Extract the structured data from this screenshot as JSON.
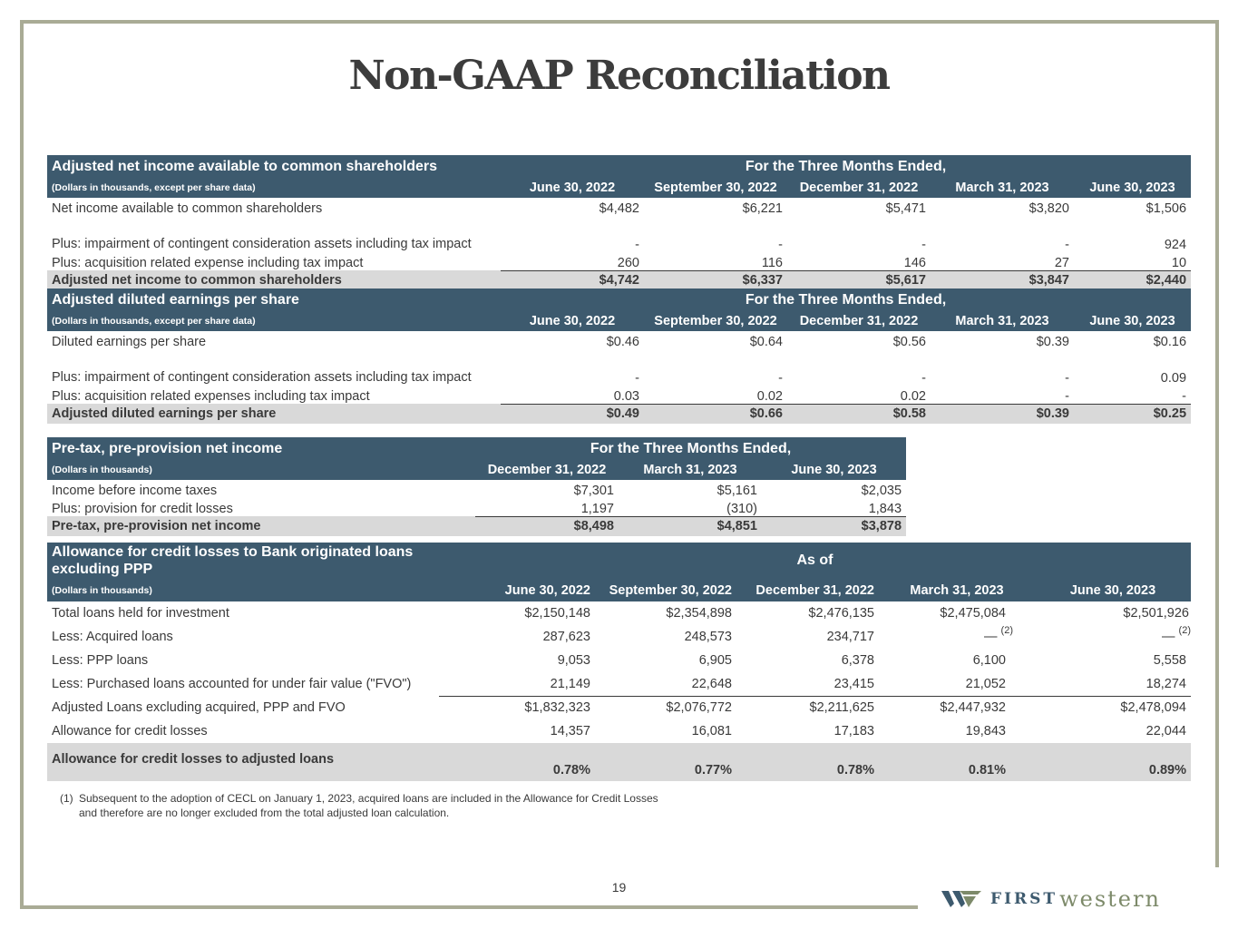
{
  "page": {
    "title": "Non-GAAP Reconciliation",
    "page_number": "19"
  },
  "table1": {
    "title": "Adjusted net income available to common shareholders",
    "period_header": "For the Three Months Ended,",
    "subtitle": "(Dollars in thousands, except per share data)",
    "columns": [
      "June 30, 2022",
      "September 30, 2022",
      "December 31, 2022",
      "March 31, 2023",
      "June 30, 2023"
    ],
    "rows": [
      {
        "label": "Net income available to common shareholders",
        "values": [
          "$4,482",
          "$6,221",
          "$5,471",
          "$3,820",
          "$1,506"
        ]
      },
      {
        "label": "Plus: impairment of contingent consideration assets including tax impact",
        "values": [
          "-",
          "-",
          "-",
          "-",
          "924"
        ]
      },
      {
        "label": "Plus: acquisition related expense including tax impact",
        "values": [
          "260",
          "116",
          "146",
          "27",
          "10"
        ]
      }
    ],
    "total": {
      "label": "Adjusted net income to common shareholders",
      "values": [
        "$4,742",
        "$6,337",
        "$5,617",
        "$3,847",
        "$2,440"
      ]
    }
  },
  "table2": {
    "title": "Adjusted diluted earnings per share",
    "period_header": "For the Three Months Ended,",
    "subtitle": "(Dollars in thousands, except per share data)",
    "columns": [
      "June 30, 2022",
      "September 30, 2022",
      "December 31, 2022",
      "March 31, 2023",
      "June 30, 2023"
    ],
    "rows": [
      {
        "label": "Diluted earnings per share",
        "values": [
          "$0.46",
          "$0.64",
          "$0.56",
          "$0.39",
          "$0.16"
        ]
      },
      {
        "label": "Plus: impairment of contingent consideration assets including tax impact",
        "values": [
          "-",
          "-",
          "-",
          "-",
          "0.09"
        ]
      },
      {
        "label": "Plus: acquisition related expenses including tax impact",
        "values": [
          "0.03",
          "0.02",
          "0.02",
          "-",
          "-"
        ]
      }
    ],
    "total": {
      "label": "Adjusted diluted earnings per share",
      "values": [
        "$0.49",
        "$0.66",
        "$0.58",
        "$0.39",
        "$0.25"
      ]
    }
  },
  "table3": {
    "title": "Pre-tax, pre-provision net income",
    "period_header": "For the Three Months Ended,",
    "subtitle": "(Dollars in thousands)",
    "columns": [
      "December 31, 2022",
      "March 31, 2023",
      "June 30, 2023"
    ],
    "rows": [
      {
        "label": "Income before income taxes",
        "values": [
          "$7,301",
          "$5,161",
          "$2,035"
        ]
      },
      {
        "label": "Plus: provision for credit losses",
        "values": [
          "1,197",
          "(310)",
          "1,843"
        ]
      }
    ],
    "total": {
      "label": "Pre-tax, pre-provision net income",
      "values": [
        "$8,498",
        "$4,851",
        "$3,878"
      ]
    }
  },
  "table4": {
    "title": "Allowance for credit losses to Bank originated loans excluding PPP",
    "period_header": "As of",
    "subtitle": "(Dollars in thousands)",
    "columns": [
      "June 30, 2022",
      "September 30, 2022",
      "December 31, 2022",
      "March 31, 2023",
      "June 30, 2023"
    ],
    "rows": [
      {
        "label": "Total loans held for investment",
        "values": [
          "$2,150,148",
          "$2,354,898",
          "$2,476,135",
          "$2,475,084",
          "$2,501,926"
        ]
      },
      {
        "label": "Less: Acquired loans",
        "values": [
          "287,623",
          "248,573",
          "234,717",
          "—",
          "—"
        ],
        "footnote_marks": [
          "",
          "",
          "",
          "(2)",
          "(2)"
        ]
      },
      {
        "label": "Less: PPP loans",
        "values": [
          "9,053",
          "6,905",
          "6,378",
          "6,100",
          "5,558"
        ]
      },
      {
        "label": "Less: Purchased loans accounted for under fair value (\"FVO\")",
        "values": [
          "21,149",
          "22,648",
          "23,415",
          "21,052",
          "18,274"
        ]
      },
      {
        "label": "Adjusted Loans excluding acquired, PPP and FVO",
        "values": [
          "$1,832,323",
          "$2,076,772",
          "$2,211,625",
          "$2,447,932",
          "$2,478,094"
        ]
      },
      {
        "label": "Allowance for credit losses",
        "values": [
          "14,357",
          "16,081",
          "17,183",
          "19,843",
          "22,044"
        ]
      }
    ],
    "total": {
      "label": "Allowance for credit losses to adjusted loans",
      "values": [
        "0.78%",
        "0.77%",
        "0.78%",
        "0.81%",
        "0.89%"
      ]
    }
  },
  "footnote": {
    "number": "(1)",
    "text": "Subsequent to the adoption of CECL on January 1, 2023, acquired loans are included in the Allowance for Credit Losses and therefore are no longer excluded from the total adjusted loan calculation."
  },
  "logo": {
    "first": "FIRST",
    "western": "western",
    "icon": "first-western-w-icon"
  },
  "colors": {
    "header_bg": "#3d5a6e",
    "total_bg": "#d9d9d9",
    "frame": "#a9ab95"
  }
}
